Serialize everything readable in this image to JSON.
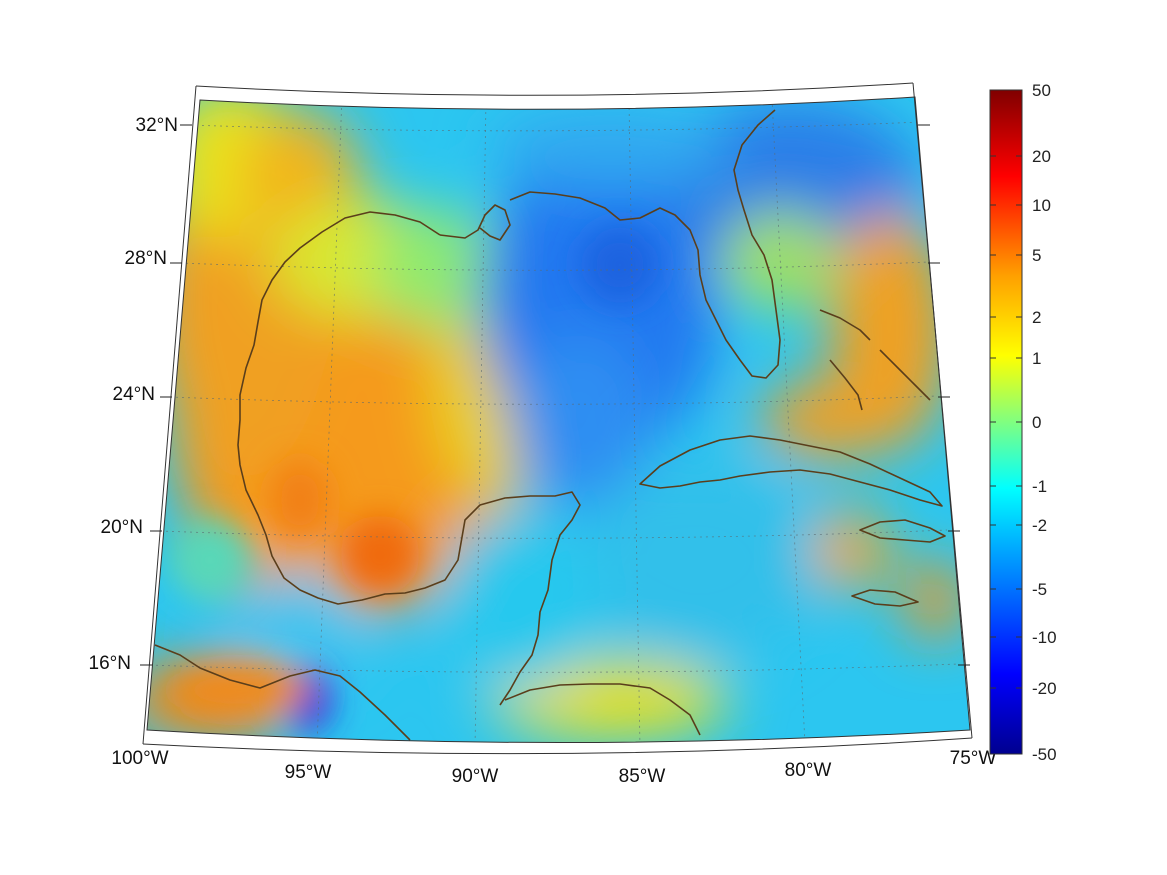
{
  "map": {
    "projection": "conic",
    "lon_labels": [
      "100°W",
      "95°W",
      "90°W",
      "85°W",
      "80°W",
      "75°W"
    ],
    "lat_labels": [
      "32°N",
      "28°N",
      "24°N",
      "20°N",
      "16°N"
    ],
    "coastline_color": "#5a3e1b",
    "grid": "dotted"
  },
  "colorbar": {
    "colormap": "jet",
    "tick_labels": [
      "50",
      "20",
      "10",
      "5",
      "2",
      "1",
      "0",
      "-1",
      "-2",
      "-5",
      "-10",
      "-20",
      "-50"
    ]
  }
}
